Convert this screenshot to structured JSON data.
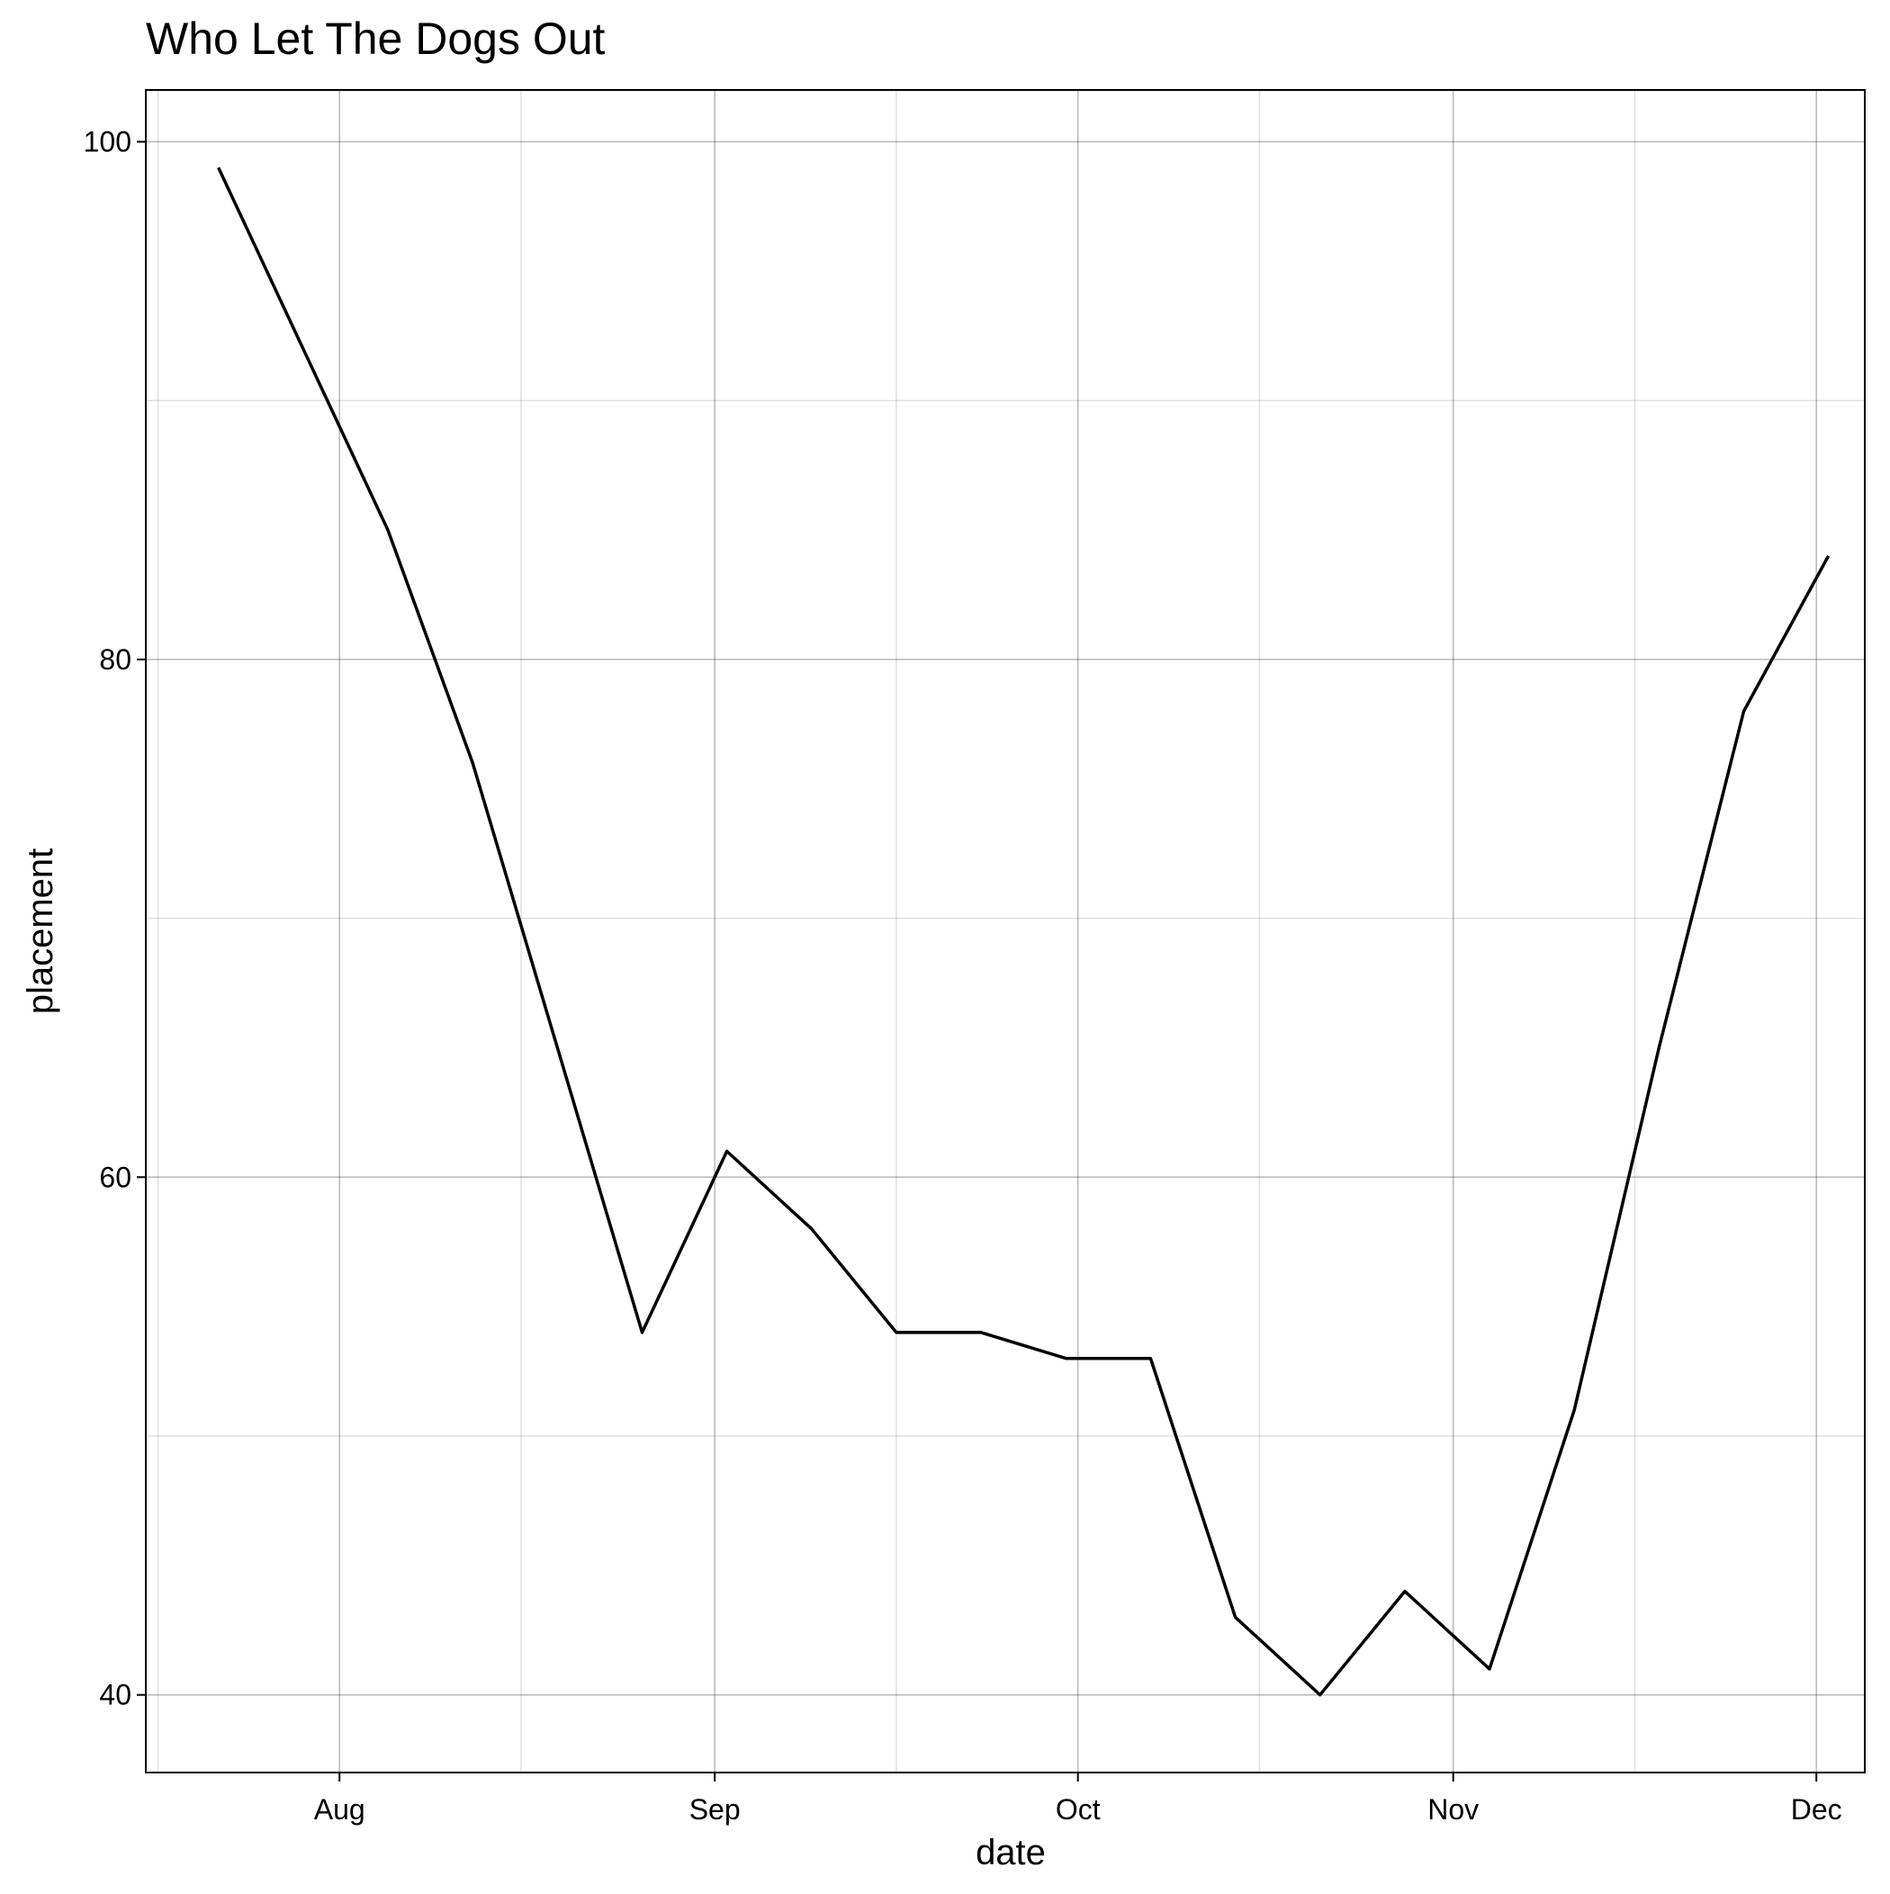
{
  "chart_data": {
    "type": "line",
    "title": "Who Let The Dogs Out",
    "xlabel": "date",
    "ylabel": "placement",
    "x_axis_kind": "date",
    "xlim": [
      "2023-07-16",
      "2023-12-05"
    ],
    "ylim": [
      37,
      102
    ],
    "x_ticks": [
      {
        "date": "2023-08-01",
        "label": "Aug"
      },
      {
        "date": "2023-09-01",
        "label": "Sep"
      },
      {
        "date": "2023-10-01",
        "label": "Oct"
      },
      {
        "date": "2023-11-01",
        "label": "Nov"
      },
      {
        "date": "2023-12-01",
        "label": "Dec"
      }
    ],
    "x_minor_grid": [
      "2023-07-17",
      "2023-08-16",
      "2023-09-16",
      "2023-10-16",
      "2023-11-16"
    ],
    "y_ticks": [
      40,
      60,
      80,
      100
    ],
    "y_minor_grid": [
      50,
      70,
      90
    ],
    "grid": true,
    "series": [
      {
        "color": "#000000",
        "points": [
          {
            "x": "2023-07-22",
            "y": 99
          },
          {
            "x": "2023-08-05",
            "y": 85
          },
          {
            "x": "2023-08-12",
            "y": 76
          },
          {
            "x": "2023-08-26",
            "y": 54
          },
          {
            "x": "2023-09-02",
            "y": 61
          },
          {
            "x": "2023-09-09",
            "y": 58
          },
          {
            "x": "2023-09-16",
            "y": 54
          },
          {
            "x": "2023-09-23",
            "y": 54
          },
          {
            "x": "2023-09-30",
            "y": 53
          },
          {
            "x": "2023-10-07",
            "y": 53
          },
          {
            "x": "2023-10-14",
            "y": 43
          },
          {
            "x": "2023-10-21",
            "y": 40
          },
          {
            "x": "2023-10-28",
            "y": 44
          },
          {
            "x": "2023-11-04",
            "y": 41
          },
          {
            "x": "2023-11-11",
            "y": 51
          },
          {
            "x": "2023-11-18",
            "y": 65
          },
          {
            "x": "2023-11-25",
            "y": 78
          },
          {
            "x": "2023-12-02",
            "y": 84
          }
        ]
      }
    ]
  }
}
